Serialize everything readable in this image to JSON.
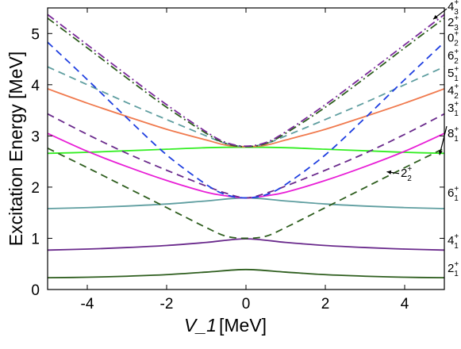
{
  "chart_data": {
    "type": "line",
    "title": "",
    "xlabel": "V_1",
    "xlabel_unit": "[MeV]",
    "ylabel": "Excitation Energy [MeV]",
    "xlim": [
      -5,
      5
    ],
    "ylim": [
      0,
      5.5
    ],
    "xticks": [
      -4,
      -2,
      0,
      2,
      4
    ],
    "xtick_labels": [
      "-4",
      "-2",
      "0",
      "2",
      "4"
    ],
    "yticks": [
      0,
      1,
      2,
      3,
      4,
      5
    ],
    "ytick_labels": [
      "0",
      "1",
      "2",
      "3",
      "4",
      "5"
    ],
    "grid": false,
    "legend": "labels at right edge",
    "series": [
      {
        "label": "2_1^+",
        "color": "#2e5e1e",
        "dash": "solid",
        "x": [
          -5,
          -4,
          -3,
          -2,
          -1,
          0,
          1,
          2,
          3,
          4,
          5
        ],
        "y": [
          0.23,
          0.24,
          0.26,
          0.29,
          0.34,
          0.39,
          0.34,
          0.29,
          0.26,
          0.24,
          0.23
        ]
      },
      {
        "label": "4_1^+",
        "color": "#6a2a8c",
        "dash": "solid",
        "x": [
          -5,
          -4,
          -3,
          -2,
          -1,
          0,
          1,
          2,
          3,
          4,
          5
        ],
        "y": [
          0.77,
          0.79,
          0.82,
          0.86,
          0.92,
          0.99,
          0.92,
          0.86,
          0.82,
          0.79,
          0.77
        ]
      },
      {
        "label": "6_1^+",
        "color": "#5f9ea0",
        "dash": "solid",
        "x": [
          -5,
          -4,
          -3,
          -2,
          -1,
          0,
          1,
          2,
          3,
          4,
          5
        ],
        "y": [
          1.58,
          1.6,
          1.63,
          1.67,
          1.73,
          1.79,
          1.73,
          1.67,
          1.63,
          1.6,
          1.58
        ]
      },
      {
        "label": "8_1^+",
        "color": "#33ee22",
        "dash": "solid",
        "x": [
          -5,
          -4,
          -3,
          -2,
          -1,
          0,
          1,
          2,
          3,
          4,
          5
        ],
        "y": [
          2.66,
          2.68,
          2.71,
          2.74,
          2.77,
          2.78,
          2.77,
          2.74,
          2.71,
          2.68,
          2.66
        ]
      },
      {
        "label": "2_2^+",
        "color": "#2e5e1e",
        "dash": "dashed",
        "x": [
          -5,
          -4,
          -3,
          -2,
          -1,
          -0.5,
          0,
          0.5,
          1,
          2,
          3,
          4,
          5
        ],
        "y": [
          2.76,
          2.38,
          1.99,
          1.6,
          1.21,
          1.04,
          1.0,
          1.04,
          1.21,
          1.6,
          1.99,
          2.38,
          2.76
        ]
      },
      {
        "label": "3_1^+",
        "color": "#e81ed6",
        "dash": "solid",
        "x": [
          -5,
          -4,
          -3,
          -2,
          -1,
          -0.5,
          0,
          0.5,
          1,
          2,
          3,
          4,
          5
        ],
        "y": [
          3.05,
          2.7,
          2.4,
          2.13,
          1.9,
          1.83,
          1.79,
          1.83,
          1.9,
          2.13,
          2.4,
          2.7,
          3.05
        ]
      },
      {
        "label": "4_2^+",
        "color": "#6a2a8c",
        "dash": "dashed",
        "x": [
          -5,
          -4,
          -3,
          -2,
          -1,
          -0.5,
          0,
          0.5,
          1,
          2,
          3,
          4,
          5
        ],
        "y": [
          3.43,
          3.03,
          2.66,
          2.33,
          2.02,
          1.88,
          1.79,
          1.88,
          2.02,
          2.33,
          2.66,
          3.03,
          3.43
        ]
      },
      {
        "label": "5_1^+",
        "color": "#f07a4e",
        "dash": "solid",
        "x": [
          -5,
          -4,
          -3,
          -2,
          -1,
          -0.5,
          0,
          0.5,
          1,
          2,
          3,
          4,
          5
        ],
        "y": [
          3.92,
          3.64,
          3.38,
          3.13,
          2.92,
          2.82,
          2.79,
          2.82,
          2.92,
          3.13,
          3.38,
          3.64,
          3.92
        ]
      },
      {
        "label": "6_2^+",
        "color": "#5f9ea0",
        "dash": "dashed",
        "x": [
          -5,
          -4,
          -3,
          -2,
          -1,
          -0.5,
          0,
          0.5,
          1,
          2,
          3,
          4,
          5
        ],
        "y": [
          4.35,
          4.0,
          3.65,
          3.32,
          3.0,
          2.85,
          2.79,
          2.85,
          3.0,
          3.32,
          3.65,
          4.0,
          4.35
        ]
      },
      {
        "label": "0_2^+",
        "color": "#1f3fe0",
        "dash": "dashed",
        "x": [
          -5,
          -4,
          -3,
          -2,
          -1,
          -0.5,
          0,
          0.5,
          1,
          2,
          3,
          4,
          5
        ],
        "y": [
          4.83,
          4.1,
          3.35,
          2.63,
          2.05,
          1.85,
          1.79,
          1.85,
          2.05,
          2.63,
          3.35,
          4.1,
          4.83
        ]
      },
      {
        "label": "2_3^+",
        "color": "#2e5e1e",
        "dash": "dashdot",
        "x": [
          -5,
          -4,
          -3,
          -2,
          -1,
          -0.5,
          0,
          0.5,
          1,
          2,
          3,
          4,
          5
        ],
        "y": [
          5.3,
          4.72,
          4.13,
          3.56,
          3.05,
          2.85,
          2.79,
          2.85,
          3.05,
          3.56,
          4.13,
          4.72,
          5.3
        ]
      },
      {
        "label": "4_3^+",
        "color": "#7a2a9a",
        "dash": "dashdot",
        "x": [
          -5,
          -4,
          -3,
          -2,
          -1,
          -0.5,
          0,
          0.5,
          1,
          2,
          3,
          4,
          5
        ],
        "y": [
          5.37,
          4.78,
          4.19,
          3.61,
          3.08,
          2.87,
          2.8,
          2.87,
          3.08,
          3.61,
          4.19,
          4.78,
          5.37
        ]
      }
    ],
    "labels": [
      {
        "base": "4",
        "sub": "3",
        "sup": "+",
        "y": 5.53,
        "series": "4_3^+",
        "arrow": true
      },
      {
        "base": "2",
        "sub": "3",
        "sup": "+",
        "y": 5.22,
        "series": "2_3^+"
      },
      {
        "base": "0",
        "sub": "2",
        "sup": "+",
        "y": 4.92,
        "series": "0_2^+"
      },
      {
        "base": "6",
        "sub": "2",
        "sup": "+",
        "y": 4.57,
        "series": "6_2^+"
      },
      {
        "base": "5",
        "sub": "1",
        "sup": "+",
        "y": 4.23,
        "series": "5_1^+"
      },
      {
        "base": "4",
        "sub": "2",
        "sup": "+",
        "y": 3.89,
        "series": "4_2^+"
      },
      {
        "base": "3",
        "sub": "1",
        "sup": "+",
        "y": 3.55,
        "series": "3_1^+"
      },
      {
        "base": "8",
        "sub": "1",
        "sup": "+",
        "y": 3.05,
        "series": "8_1^+",
        "arrow": true
      },
      {
        "base": "2",
        "sub": "2",
        "sup": "+",
        "y": 2.28,
        "series": "2_2^+",
        "arrow": true,
        "inside": true
      },
      {
        "base": "6",
        "sub": "1",
        "sup": "+",
        "y": 1.89,
        "series": "6_1^+"
      },
      {
        "base": "4",
        "sub": "1",
        "sup": "+",
        "y": 0.96,
        "series": "4_1^+"
      },
      {
        "base": "2",
        "sub": "1",
        "sup": "+",
        "y": 0.42,
        "series": "2_1^+"
      }
    ]
  }
}
